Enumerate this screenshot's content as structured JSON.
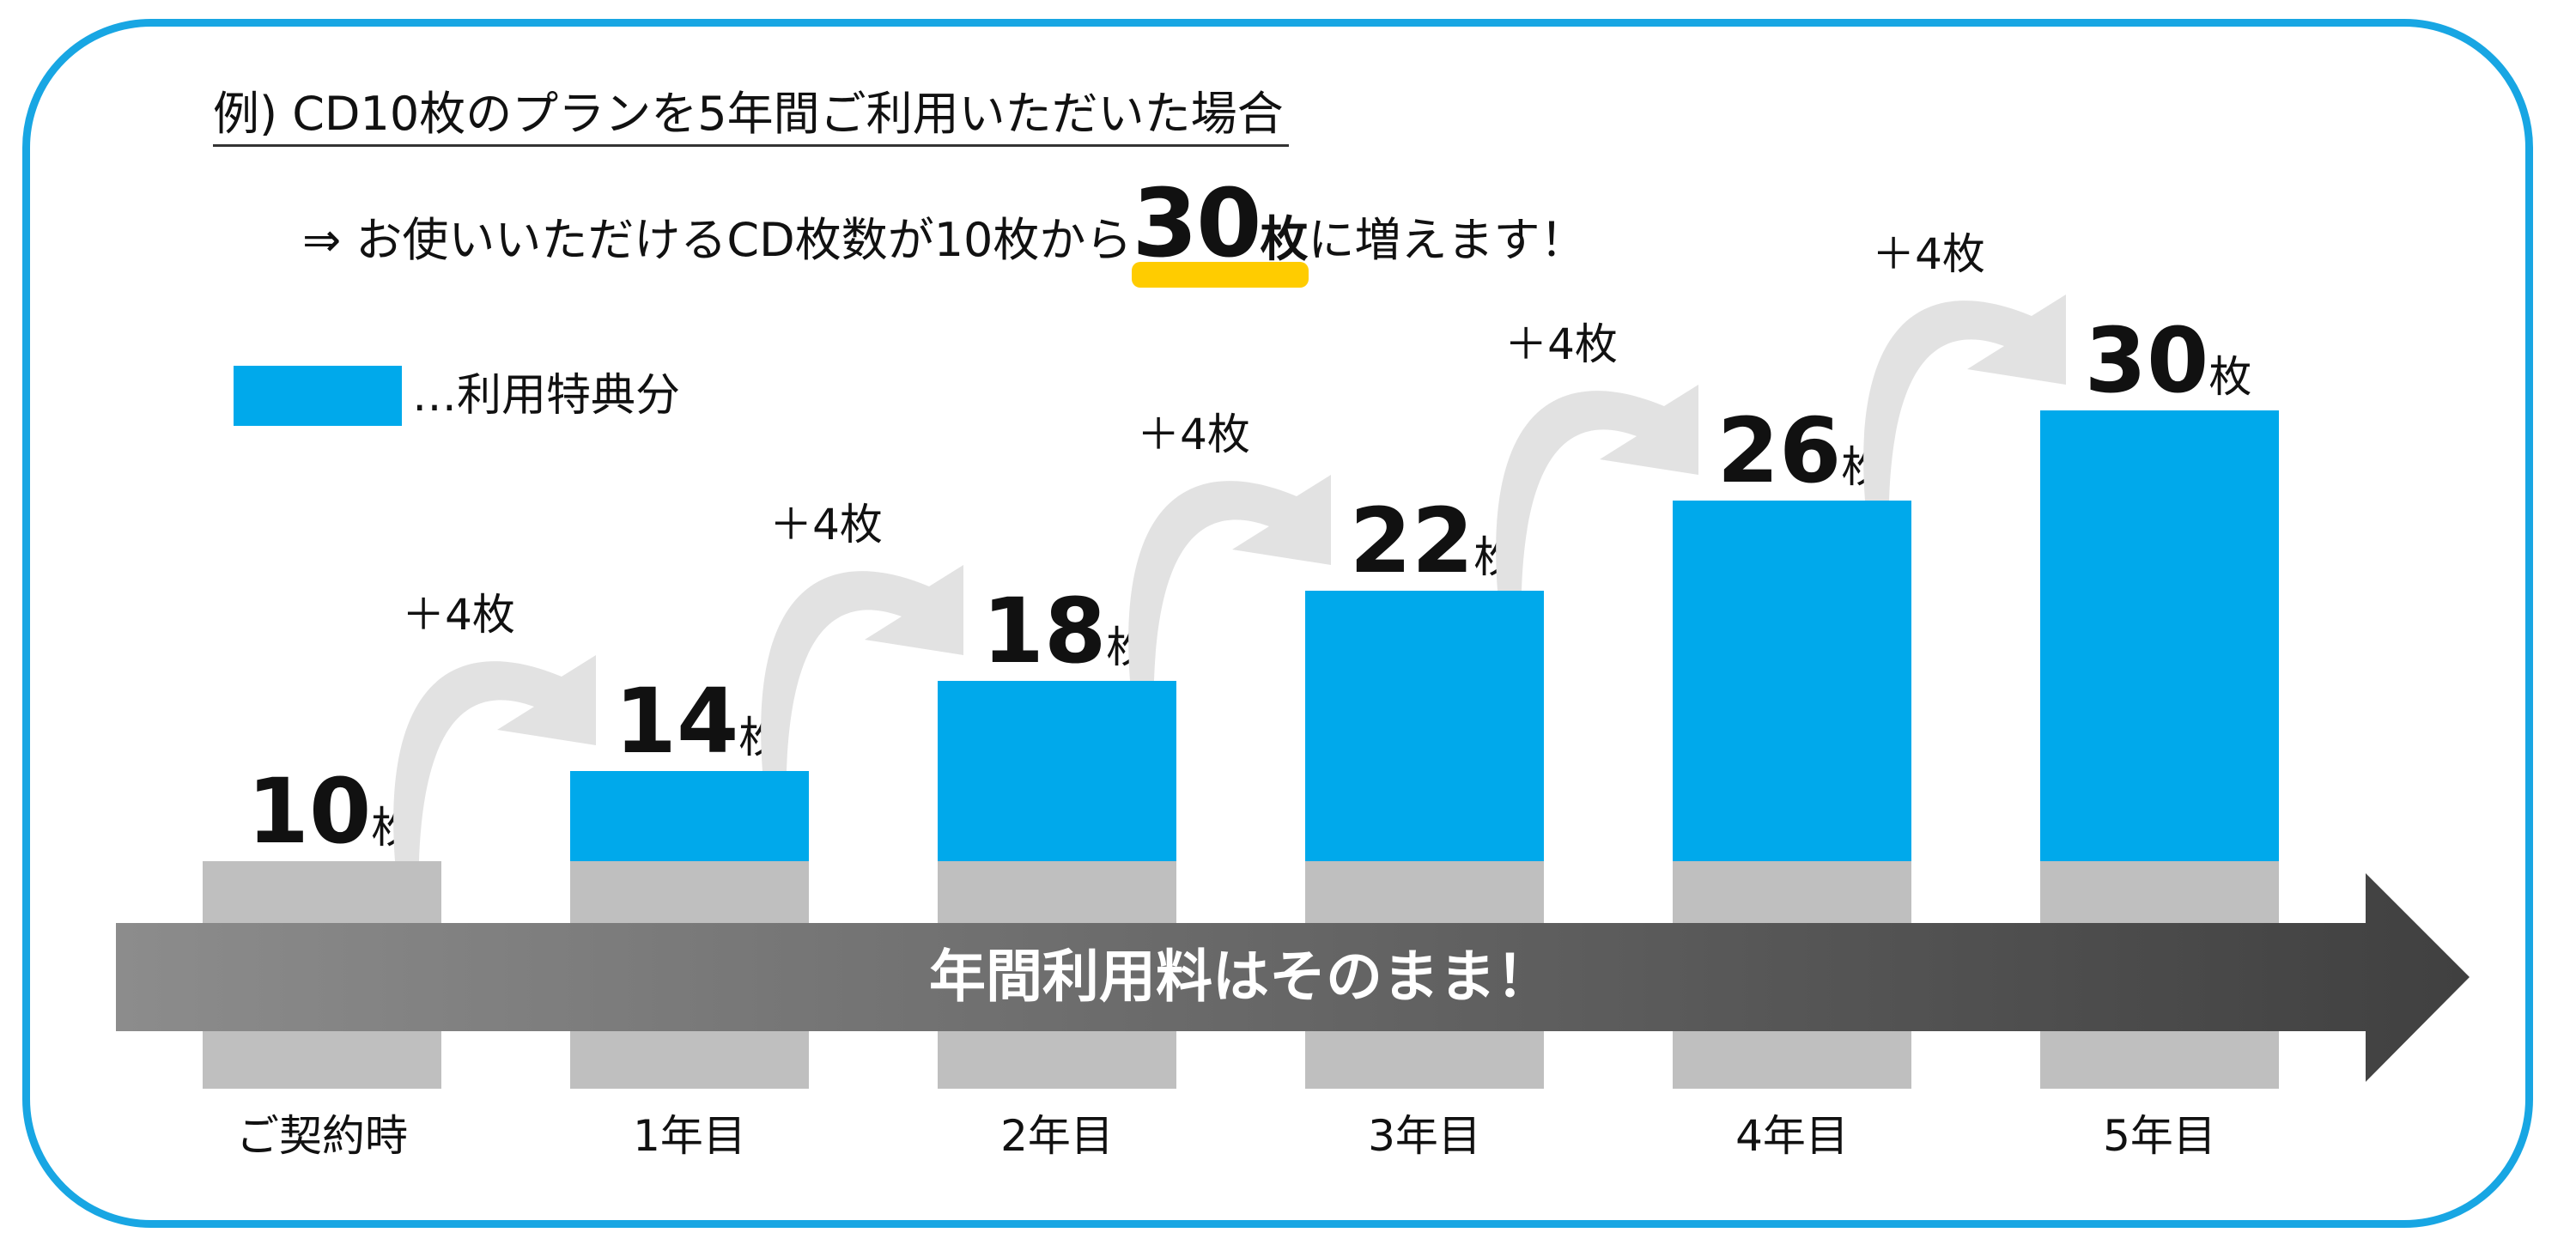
{
  "header": {
    "example": "例) CD10枚のプランを5年間ご利用いただいた場合",
    "summary_prefix": "⇒ お使いいただけるCD枚数が10枚から",
    "summary_value": "30",
    "summary_unit": "枚",
    "summary_suffix": "に増えます！"
  },
  "legend": {
    "label": "…利用特典分"
  },
  "arrow_label": "年間利用料はそのまま！",
  "colors": {
    "bonus": "#00a9eb",
    "base": "#bfbfbf",
    "curve": "#e2e2e2",
    "frame": "#18a6e3",
    "highlight": "#ffcc00"
  },
  "chart_data": {
    "type": "bar",
    "categories": [
      "ご契約時",
      "1年目",
      "2年目",
      "3年目",
      "4年目",
      "5年目"
    ],
    "series": [
      {
        "name": "利用特典分",
        "values": [
          0,
          4,
          8,
          12,
          16,
          20
        ]
      }
    ],
    "total_labels": [
      "10",
      "14",
      "18",
      "22",
      "26",
      "30"
    ],
    "unit": "枚",
    "increments": [
      "＋4枚",
      "＋4枚",
      "＋4枚",
      "＋4枚",
      "＋4枚"
    ]
  }
}
